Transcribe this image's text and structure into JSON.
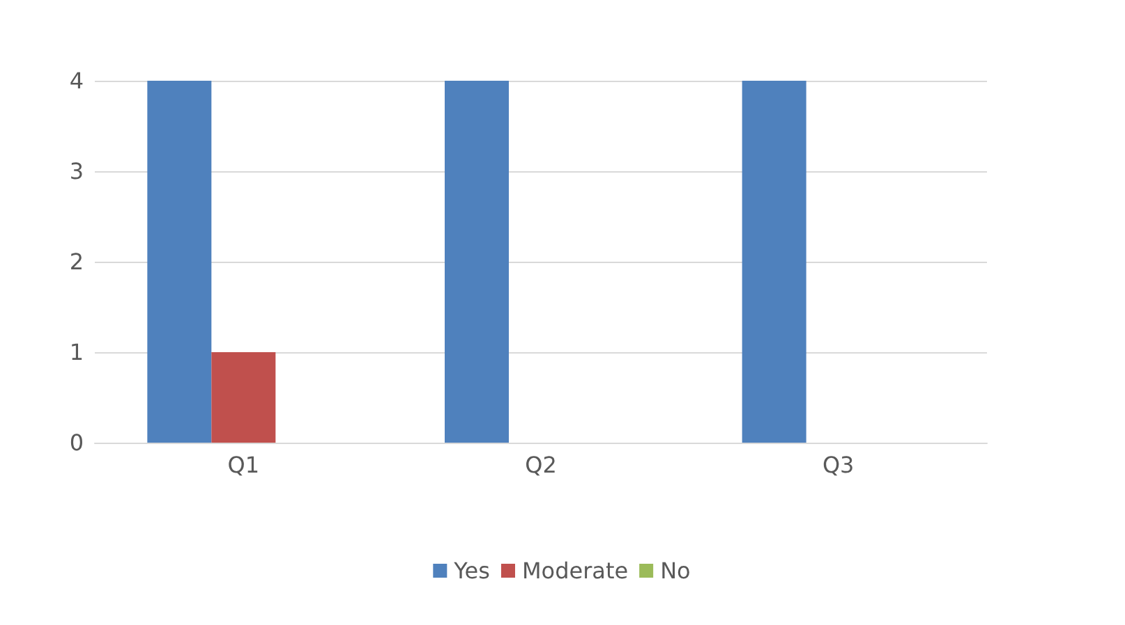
{
  "chart_data": {
    "type": "bar",
    "categories": [
      "Q1",
      "Q2",
      "Q3"
    ],
    "series": [
      {
        "name": "Yes",
        "color": "#4f81bd",
        "values": [
          4,
          4,
          4
        ]
      },
      {
        "name": "Moderate",
        "color": "#c0504d",
        "values": [
          1,
          0,
          0
        ]
      },
      {
        "name": "No",
        "color": "#9bbb59",
        "values": [
          0,
          0,
          0
        ]
      }
    ],
    "ylim": [
      0,
      4
    ],
    "yticks": [
      0,
      1,
      2,
      3,
      4
    ],
    "grid": "y",
    "legend": "bottom"
  }
}
